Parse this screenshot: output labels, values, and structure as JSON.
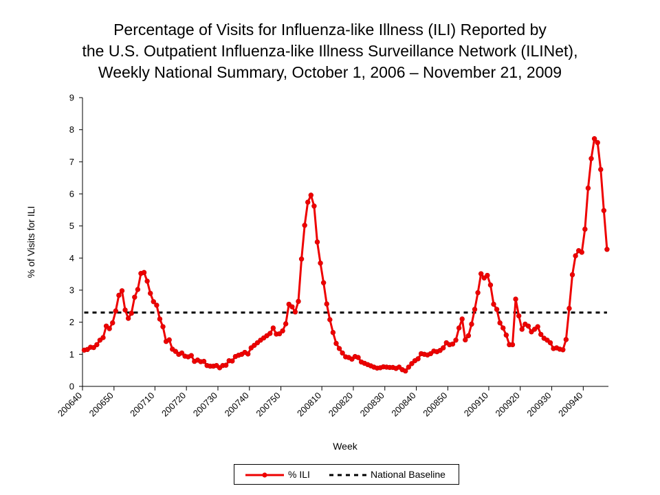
{
  "chart_data": {
    "type": "line",
    "title_lines": [
      "Percentage of Visits for Influenza-like Illness (ILI) Reported by",
      "the U.S. Outpatient Influenza-like Illness Surveillance Network (ILINet),",
      "Weekly National Summary, October 1, 2006 – November 21, 2009"
    ],
    "xlabel": "Week",
    "ylabel": "% of Visits for ILI",
    "ylim": [
      0,
      9
    ],
    "yticks": [
      0,
      1,
      2,
      3,
      4,
      5,
      6,
      7,
      8,
      9
    ],
    "xtick_labels": [
      "200640",
      "200650",
      "200710",
      "200720",
      "200730",
      "200740",
      "200750",
      "200810",
      "200820",
      "200830",
      "200840",
      "200850",
      "200910",
      "200920",
      "200930",
      "200940"
    ],
    "xtick_index": [
      0,
      10,
      23,
      33,
      43,
      53,
      63,
      76,
      86,
      96,
      106,
      116,
      129,
      139,
      149,
      159
    ],
    "grid": false,
    "legend_position": "bottom",
    "series": [
      {
        "name": "% ILI",
        "color": "#ee0000",
        "marker": "circle",
        "values": [
          1.13,
          1.15,
          1.22,
          1.21,
          1.3,
          1.44,
          1.52,
          1.88,
          1.8,
          1.98,
          2.35,
          2.84,
          2.98,
          2.38,
          2.12,
          2.28,
          2.78,
          3.02,
          3.52,
          3.55,
          3.28,
          2.9,
          2.64,
          2.53,
          2.1,
          1.86,
          1.4,
          1.45,
          1.16,
          1.09,
          1.0,
          1.04,
          0.94,
          0.92,
          0.96,
          0.78,
          0.82,
          0.77,
          0.78,
          0.65,
          0.63,
          0.63,
          0.65,
          0.58,
          0.65,
          0.66,
          0.8,
          0.79,
          0.93,
          0.97,
          1.0,
          1.06,
          1.01,
          1.2,
          1.28,
          1.36,
          1.44,
          1.51,
          1.58,
          1.65,
          1.82,
          1.63,
          1.64,
          1.73,
          1.95,
          2.56,
          2.48,
          2.32,
          2.65,
          3.97,
          5.02,
          5.74,
          5.96,
          5.62,
          4.5,
          3.84,
          3.23,
          2.57,
          2.08,
          1.68,
          1.34,
          1.18,
          1.04,
          0.92,
          0.9,
          0.85,
          0.93,
          0.9,
          0.76,
          0.72,
          0.68,
          0.64,
          0.6,
          0.57,
          0.58,
          0.61,
          0.6,
          0.59,
          0.59,
          0.56,
          0.6,
          0.52,
          0.48,
          0.6,
          0.71,
          0.8,
          0.86,
          1.02,
          1.0,
          0.98,
          1.02,
          1.1,
          1.08,
          1.12,
          1.2,
          1.36,
          1.3,
          1.32,
          1.44,
          1.82,
          2.1,
          1.45,
          1.58,
          1.94,
          2.4,
          2.92,
          3.51,
          3.38,
          3.46,
          3.16,
          2.56,
          2.4,
          1.98,
          1.82,
          1.6,
          1.3,
          1.3,
          2.72,
          2.2,
          1.78,
          1.94,
          1.88,
          1.7,
          1.78,
          1.86,
          1.62,
          1.5,
          1.44,
          1.36,
          1.18,
          1.2,
          1.16,
          1.14,
          1.46,
          2.43,
          3.48,
          4.07,
          4.23,
          4.18,
          4.9,
          6.18,
          7.1,
          7.72,
          7.6,
          6.76,
          5.48,
          4.27
        ]
      },
      {
        "name": "National Baseline",
        "color": "#000000",
        "style": "dashed",
        "value": 2.3
      }
    ]
  }
}
